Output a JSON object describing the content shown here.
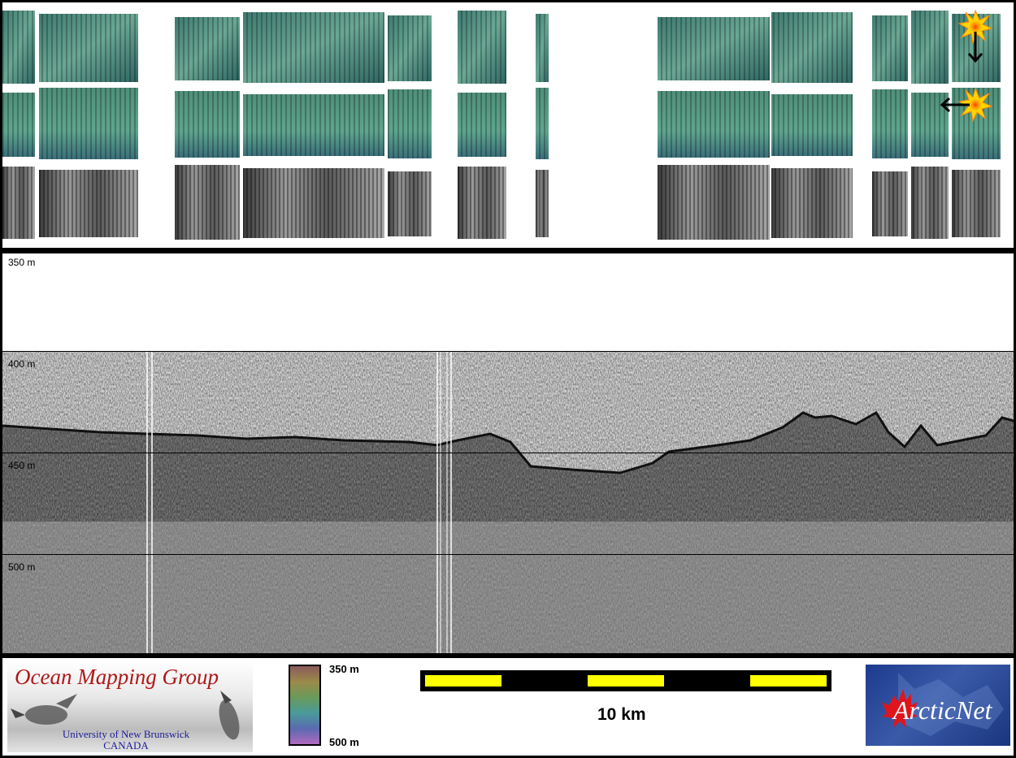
{
  "depth_labels": [
    "350 m",
    "400 m",
    "450 m",
    "500 m"
  ],
  "colorbar": {
    "top_label": "350 m",
    "bottom_label": "500 m"
  },
  "scale_bar": {
    "label": "10 km",
    "fill_color": "#ffff00",
    "segment_color": "#000000"
  },
  "logos": {
    "omg": {
      "title": "Ocean Mapping Group",
      "line1": "University of New Brunswick",
      "line2": "CANADA"
    },
    "arcticnet": {
      "text": "ArcticNet"
    }
  },
  "sun_icons": [
    {
      "name": "sun-icon",
      "arrow": "down"
    },
    {
      "name": "sun-icon",
      "arrow": "left"
    }
  ],
  "colors": {
    "relief_green": "#5f9f8a",
    "relief_dark": "#2f5f58",
    "backscatter": "#6e6e6e",
    "title_red": "#b01818",
    "uni_blue": "#1c1c9a",
    "arctic_blue": "#1e3a8a"
  }
}
